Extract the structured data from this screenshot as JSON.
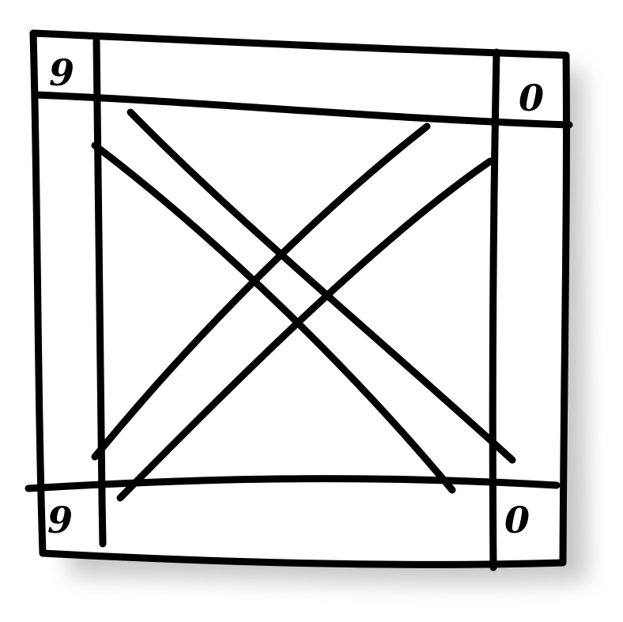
{
  "sketch": {
    "subject": "crate",
    "corner_marks": [
      "9",
      "0",
      "9",
      "0"
    ],
    "colors": {
      "ink": "#000000",
      "paper": "#ffffff",
      "shadow": "#9a9a9a"
    }
  }
}
